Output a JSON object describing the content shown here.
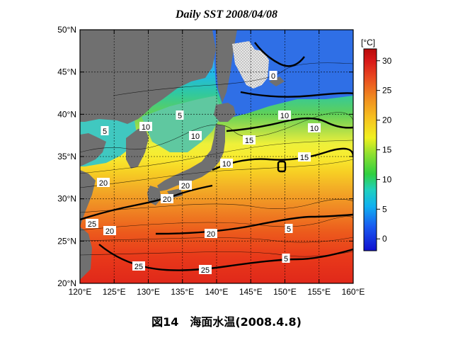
{
  "title": "Daily SST 2008/04/08",
  "caption": "図14　海面水温(2008.4.8)",
  "unit_label": "[°C]",
  "map": {
    "region": {
      "lon": [
        120,
        160
      ],
      "lat": [
        20,
        50
      ]
    },
    "lon_ticks": [
      "120°E",
      "125°E",
      "130°E",
      "135°E",
      "140°E",
      "145°E",
      "150°E",
      "155°E",
      "160°E"
    ],
    "lat_ticks": [
      "50°N",
      "45°N",
      "40°N",
      "35°N",
      "30°N",
      "25°N",
      "20°N"
    ],
    "colorbar": {
      "min": -2,
      "max": 32,
      "ticks": [
        "30",
        "25",
        "20",
        "15",
        "10",
        "5",
        "0"
      ]
    },
    "land_color": "#707070",
    "ice_color": "#d8d8d8",
    "contour_labels": [
      "0",
      "5",
      "10",
      "10",
      "5",
      "10",
      "10",
      "15",
      "15",
      "10",
      "20",
      "20",
      "20",
      "20",
      "5",
      "20",
      "25",
      "25",
      "25",
      "5"
    ]
  }
}
